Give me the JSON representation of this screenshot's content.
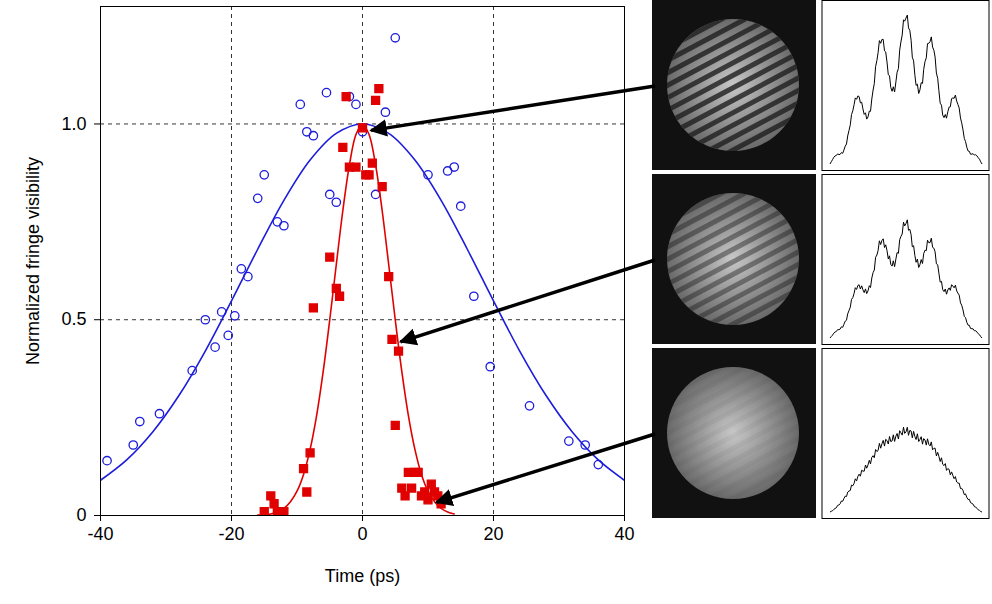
{
  "chart_data": {
    "type": "scatter",
    "x_label": "Time (ps)",
    "y_label": "Normalized fringe visibility",
    "xlim": [
      -40,
      40
    ],
    "xticks": [
      -40,
      -20,
      0,
      20,
      40
    ],
    "ylim": [
      0,
      1.3
    ],
    "yticks": [
      0,
      0.5,
      {
        "value": 1,
        "label": "1.0"
      }
    ],
    "grid": true,
    "series": [
      {
        "type": "scatter",
        "marker": "open_circle",
        "color": "#1c1cdc",
        "x": [
          -39,
          -35,
          -34,
          -31,
          -26,
          -24,
          -22.5,
          -21.5,
          -20.5,
          -19.5,
          -18.5,
          -17.5,
          -16,
          -15,
          -13,
          -12,
          -9.5,
          -8.5,
          -7.5,
          -5.5,
          -5,
          -4,
          -2,
          -1,
          0,
          2,
          3.5,
          5,
          10,
          13,
          14,
          15,
          17,
          19.5,
          25.5,
          31.5,
          34,
          36
        ],
        "values": [
          0.14,
          0.18,
          0.24,
          0.26,
          0.37,
          0.5,
          0.43,
          0.52,
          0.46,
          0.51,
          0.63,
          0.61,
          0.81,
          0.87,
          0.75,
          0.74,
          1.05,
          0.98,
          0.97,
          1.08,
          0.82,
          0.8,
          1.07,
          1.05,
          0.98,
          0.82,
          1.03,
          1.22,
          0.87,
          0.88,
          0.89,
          0.79,
          0.56,
          0.38,
          0.28,
          0.19,
          0.18,
          0.13
        ]
      },
      {
        "type": "line",
        "color": "#1c1cdc",
        "x": [
          -40,
          -36,
          -32,
          -28,
          -24,
          -20,
          -16,
          -12,
          -8,
          -4,
          0,
          4,
          8,
          12,
          16,
          20,
          24,
          28,
          32,
          36,
          40
        ],
        "values": [
          0.09,
          0.142,
          0.214,
          0.307,
          0.42,
          0.548,
          0.68,
          0.805,
          0.908,
          0.976,
          1,
          0.976,
          0.908,
          0.805,
          0.68,
          0.548,
          0.42,
          0.307,
          0.214,
          0.142,
          0.09
        ]
      },
      {
        "type": "scatter",
        "marker": "square",
        "color": "#e00000",
        "x": [
          -15,
          -14,
          -13.5,
          -13,
          -12,
          -9,
          -8.5,
          -8,
          -7.5,
          -5,
          -4,
          -3.5,
          -3,
          -2.5,
          -2,
          -1,
          0,
          0.5,
          1,
          1.5,
          2,
          2.5,
          3,
          4,
          4.5,
          5,
          5.5,
          6,
          6.5,
          7,
          7.5,
          8,
          8.5,
          9,
          9.5,
          10,
          10.5,
          11,
          11.5,
          12
        ],
        "values": [
          0.01,
          0.05,
          0.03,
          0.01,
          0.01,
          0.12,
          0.06,
          0.16,
          0.53,
          0.66,
          0.58,
          0.56,
          0.94,
          1.07,
          0.89,
          0.89,
          0.99,
          0.87,
          0.87,
          0.9,
          1.06,
          1.09,
          0.84,
          0.61,
          0.45,
          0.23,
          0.42,
          0.07,
          0.05,
          0.11,
          0.07,
          0.11,
          0.11,
          0.05,
          0.06,
          0.04,
          0.08,
          0.06,
          0.05,
          0.03
        ]
      },
      {
        "type": "line",
        "color": "#e00000",
        "x": [
          -16,
          -15,
          -14,
          -13,
          -12,
          -11,
          -10,
          -9,
          -8,
          -7,
          -6,
          -5,
          -4,
          -3,
          -2,
          -1,
          0,
          1,
          2,
          3,
          4,
          5,
          6,
          7,
          8,
          9,
          10,
          11,
          12,
          13,
          14
        ],
        "values": [
          0.001,
          0.002,
          0.004,
          0.009,
          0.018,
          0.035,
          0.062,
          0.105,
          0.169,
          0.256,
          0.368,
          0.5,
          0.641,
          0.779,
          0.895,
          0.973,
          1,
          0.973,
          0.895,
          0.779,
          0.641,
          0.5,
          0.368,
          0.256,
          0.169,
          0.105,
          0.062,
          0.035,
          0.018,
          0.009,
          0.004
        ]
      }
    ]
  }
}
